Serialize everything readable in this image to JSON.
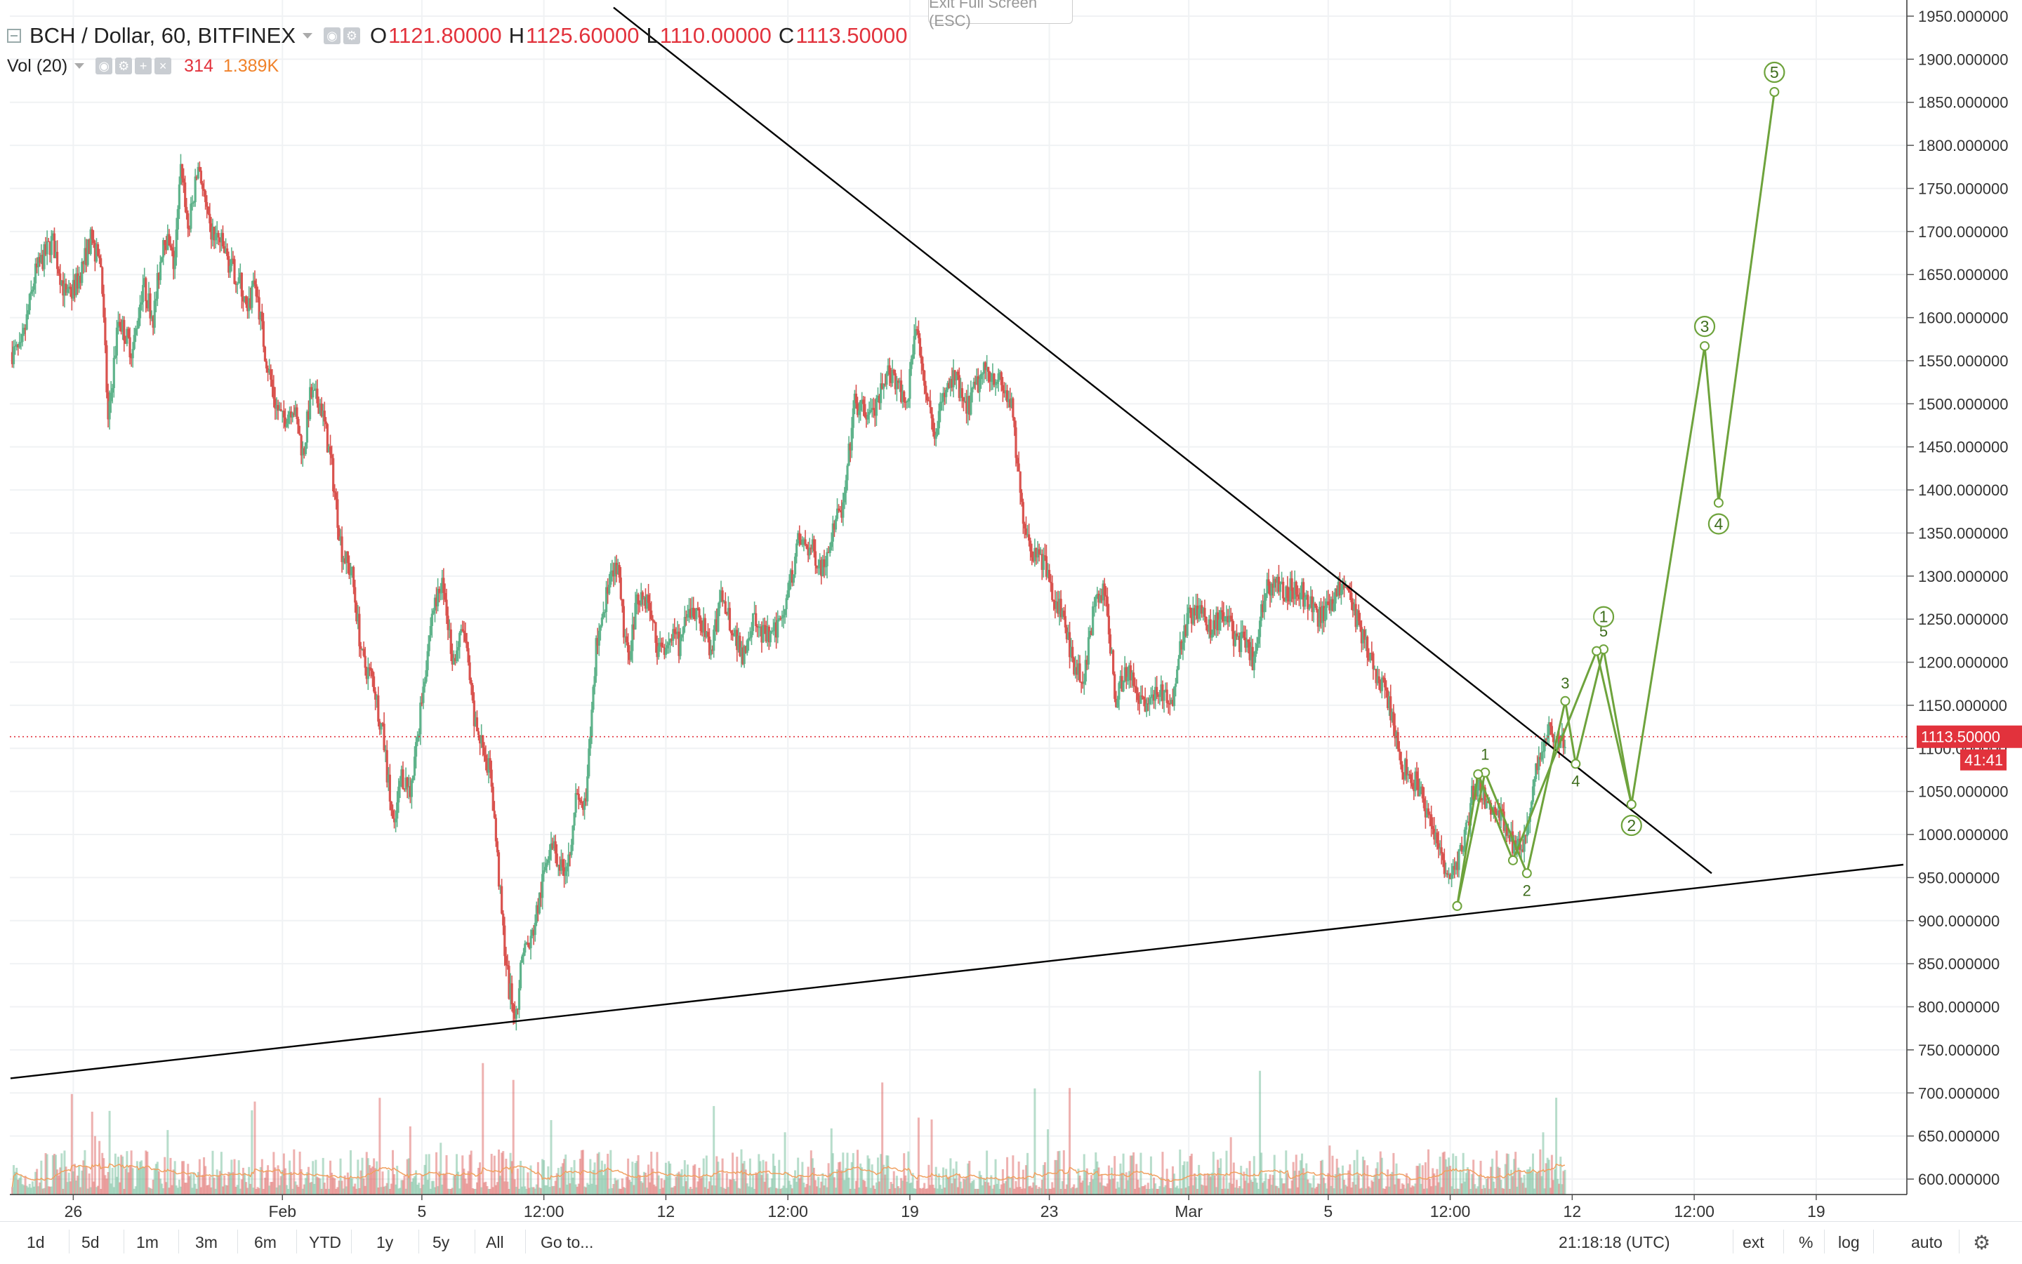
{
  "header": {
    "symbol": "BCH / Dollar, 60, BITFINEX",
    "open_label": "O",
    "open": "1121.80000",
    "high_label": "H",
    "high": "1125.60000",
    "low_label": "L",
    "low": "1110.00000",
    "close_label": "C",
    "close": "1113.50000"
  },
  "volume": {
    "label": "Vol (20)",
    "value": "314",
    "ma": "1.389K"
  },
  "fullscreen_hint": "Exit Full Screen (ESC)",
  "price_tag": {
    "value": "1113.50000",
    "countdown": "41:41"
  },
  "clock": "21:18:18 (UTC)",
  "ranges": [
    "1d",
    "5d",
    "1m",
    "3m",
    "6m",
    "YTD",
    "1y",
    "5y",
    "All"
  ],
  "goto_label": "Go to...",
  "right_controls": {
    "ext": "ext",
    "pct": "%",
    "log": "log",
    "auto": "auto"
  },
  "colors": {
    "up": "#5fb38b",
    "down": "#d9534f",
    "wave": "#6ea33c",
    "trend": "#000000",
    "price_line": "#e2323c"
  },
  "chart_data": {
    "type": "candlestick",
    "title": "BCH / Dollar, 60, BITFINEX",
    "ylim": [
      590,
      1960
    ],
    "y_ticks": [
      "1950.000000",
      "1900.000000",
      "1850.000000",
      "1800.000000",
      "1750.000000",
      "1700.000000",
      "1650.000000",
      "1600.000000",
      "1550.000000",
      "1500.000000",
      "1450.000000",
      "1400.000000",
      "1350.000000",
      "1300.000000",
      "1250.000000",
      "1200.000000",
      "1150.000000",
      "1100.000000",
      "1050.000000",
      "1000.000000",
      "950.000000",
      "900.000000",
      "850.000000",
      "800.000000",
      "750.000000",
      "700.000000",
      "650.000000",
      "600.000000"
    ],
    "x_ticks": [
      "26",
      "Feb",
      "5",
      "12:00",
      "12",
      "12:00",
      "19",
      "23",
      "Mar",
      "5",
      "12:00",
      "12",
      "12:00",
      "19"
    ],
    "x_tick_days": [
      0,
      6,
      10,
      13.5,
      17,
      20.5,
      24,
      28,
      32,
      36,
      39.5,
      43,
      46.5,
      50
    ],
    "last_day": 43,
    "price_path": [
      [
        -1.5,
        1560
      ],
      [
        -1.1,
        1650
      ],
      [
        -0.6,
        1690
      ],
      [
        -0.2,
        1620
      ],
      [
        0.1,
        1640
      ],
      [
        0.5,
        1690
      ],
      [
        0.8,
        1660
      ],
      [
        1.0,
        1480
      ],
      [
        1.3,
        1600
      ],
      [
        1.7,
        1560
      ],
      [
        2.0,
        1640
      ],
      [
        2.3,
        1600
      ],
      [
        2.6,
        1700
      ],
      [
        2.9,
        1660
      ],
      [
        3.1,
        1780
      ],
      [
        3.3,
        1700
      ],
      [
        3.6,
        1780
      ],
      [
        3.9,
        1700
      ],
      [
        4.2,
        1690
      ],
      [
        4.5,
        1660
      ],
      [
        4.8,
        1640
      ],
      [
        5.0,
        1600
      ],
      [
        5.2,
        1650
      ],
      [
        5.5,
        1560
      ],
      [
        5.8,
        1500
      ],
      [
        6.0,
        1480
      ],
      [
        6.3,
        1500
      ],
      [
        6.6,
        1440
      ],
      [
        6.8,
        1510
      ],
      [
        7.1,
        1500
      ],
      [
        7.4,
        1430
      ],
      [
        7.7,
        1330
      ],
      [
        8.0,
        1300
      ],
      [
        8.3,
        1200
      ],
      [
        8.6,
        1180
      ],
      [
        8.9,
        1110
      ],
      [
        9.2,
        1000
      ],
      [
        9.4,
        1070
      ],
      [
        9.7,
        1050
      ],
      [
        10.0,
        1160
      ],
      [
        10.3,
        1260
      ],
      [
        10.6,
        1290
      ],
      [
        10.9,
        1200
      ],
      [
        11.2,
        1240
      ],
      [
        11.5,
        1130
      ],
      [
        11.8,
        1100
      ],
      [
        12.0,
        1060
      ],
      [
        12.3,
        900
      ],
      [
        12.5,
        820
      ],
      [
        12.7,
        790
      ],
      [
        12.9,
        870
      ],
      [
        13.1,
        870
      ],
      [
        13.4,
        930
      ],
      [
        13.7,
        1000
      ],
      [
        14.0,
        960
      ],
      [
        14.2,
        970
      ],
      [
        14.4,
        1040
      ],
      [
        14.7,
        1030
      ],
      [
        15.0,
        1220
      ],
      [
        15.3,
        1280
      ],
      [
        15.6,
        1310
      ],
      [
        15.9,
        1200
      ],
      [
        16.2,
        1280
      ],
      [
        16.5,
        1270
      ],
      [
        16.8,
        1210
      ],
      [
        17.1,
        1230
      ],
      [
        17.4,
        1220
      ],
      [
        17.7,
        1260
      ],
      [
        18.0,
        1250
      ],
      [
        18.3,
        1210
      ],
      [
        18.6,
        1280
      ],
      [
        18.9,
        1240
      ],
      [
        19.2,
        1210
      ],
      [
        19.5,
        1250
      ],
      [
        19.8,
        1230
      ],
      [
        20.1,
        1230
      ],
      [
        20.5,
        1280
      ],
      [
        20.8,
        1340
      ],
      [
        21.2,
        1330
      ],
      [
        21.5,
        1310
      ],
      [
        21.8,
        1360
      ],
      [
        22.1,
        1380
      ],
      [
        22.4,
        1500
      ],
      [
        22.7,
        1490
      ],
      [
        23.0,
        1490
      ],
      [
        23.4,
        1540
      ],
      [
        23.6,
        1530
      ],
      [
        23.9,
        1500
      ],
      [
        24.2,
        1600
      ],
      [
        24.4,
        1530
      ],
      [
        24.7,
        1470
      ],
      [
        25.0,
        1510
      ],
      [
        25.3,
        1530
      ],
      [
        25.6,
        1490
      ],
      [
        25.9,
        1520
      ],
      [
        26.2,
        1540
      ],
      [
        26.5,
        1530
      ],
      [
        26.9,
        1500
      ],
      [
        27.2,
        1380
      ],
      [
        27.5,
        1330
      ],
      [
        27.8,
        1320
      ],
      [
        28.1,
        1280
      ],
      [
        28.4,
        1250
      ],
      [
        28.7,
        1200
      ],
      [
        29.0,
        1180
      ],
      [
        29.3,
        1270
      ],
      [
        29.6,
        1280
      ],
      [
        29.9,
        1160
      ],
      [
        30.2,
        1190
      ],
      [
        30.5,
        1170
      ],
      [
        30.8,
        1150
      ],
      [
        31.1,
        1170
      ],
      [
        31.5,
        1150
      ],
      [
        31.8,
        1230
      ],
      [
        32.1,
        1260
      ],
      [
        32.4,
        1250
      ],
      [
        32.7,
        1240
      ],
      [
        33.0,
        1260
      ],
      [
        33.3,
        1230
      ],
      [
        33.6,
        1220
      ],
      [
        33.9,
        1200
      ],
      [
        34.2,
        1290
      ],
      [
        34.5,
        1290
      ],
      [
        34.8,
        1280
      ],
      [
        35.1,
        1290
      ],
      [
        35.4,
        1270
      ],
      [
        35.7,
        1250
      ],
      [
        36.0,
        1260
      ],
      [
        36.3,
        1290
      ],
      [
        36.6,
        1280
      ],
      [
        36.9,
        1240
      ],
      [
        37.2,
        1200
      ],
      [
        37.5,
        1180
      ],
      [
        37.8,
        1140
      ],
      [
        38.1,
        1080
      ],
      [
        38.4,
        1070
      ],
      [
        38.7,
        1040
      ],
      [
        39.0,
        1010
      ],
      [
        39.3,
        960
      ],
      [
        39.6,
        960
      ],
      [
        39.9,
        990
      ],
      [
        40.2,
        1060
      ],
      [
        40.5,
        1040
      ],
      [
        40.8,
        1030
      ],
      [
        41.1,
        1010
      ],
      [
        41.4,
        980
      ],
      [
        41.7,
        1000
      ],
      [
        42.0,
        1080
      ],
      [
        42.3,
        1130
      ],
      [
        42.6,
        1100
      ],
      [
        42.8,
        1114
      ]
    ],
    "trendlines": [
      {
        "name": "upper",
        "from": [
          15.5,
          1960
        ],
        "to": [
          47,
          955
        ]
      },
      {
        "name": "lower",
        "from": [
          -1.8,
          717
        ],
        "to": [
          52.5,
          965
        ]
      }
    ],
    "wave_paths": [
      {
        "name": "minor",
        "points": [
          [
            39.7,
            917
          ],
          [
            40.5,
            1072
          ],
          [
            41.7,
            955
          ],
          [
            42.8,
            1155
          ],
          [
            43.1,
            1082
          ],
          [
            43.9,
            1215
          ],
          [
            44.7,
            1035
          ]
        ]
      },
      {
        "name": "major",
        "points": [
          [
            39.7,
            917
          ],
          [
            40.3,
            1070
          ],
          [
            41.3,
            970
          ],
          [
            43.7,
            1213
          ],
          [
            44.7,
            1035
          ],
          [
            46.8,
            1567
          ],
          [
            47.2,
            1385
          ],
          [
            48.8,
            1862
          ]
        ]
      }
    ],
    "wave_labels": [
      {
        "text": "1",
        "x": 40.5,
        "y": 1072,
        "circled": false
      },
      {
        "text": "2",
        "x": 41.7,
        "y": 955,
        "circled": false
      },
      {
        "text": "3",
        "x": 42.8,
        "y": 1155,
        "circled": false
      },
      {
        "text": "4",
        "x": 43.1,
        "y": 1082,
        "circled": false
      },
      {
        "text": "5",
        "x": 43.9,
        "y": 1215,
        "circled": false
      },
      {
        "text": "1",
        "x": 43.9,
        "y": 1230,
        "circled": true
      },
      {
        "text": "2",
        "x": 44.7,
        "y": 1035,
        "circled": true
      },
      {
        "text": "3",
        "x": 46.8,
        "y": 1567,
        "circled": true
      },
      {
        "text": "4",
        "x": 47.2,
        "y": 1385,
        "circled": true
      },
      {
        "text": "5",
        "x": 48.8,
        "y": 1862,
        "circled": true
      }
    ],
    "current_price": 1113.5
  }
}
